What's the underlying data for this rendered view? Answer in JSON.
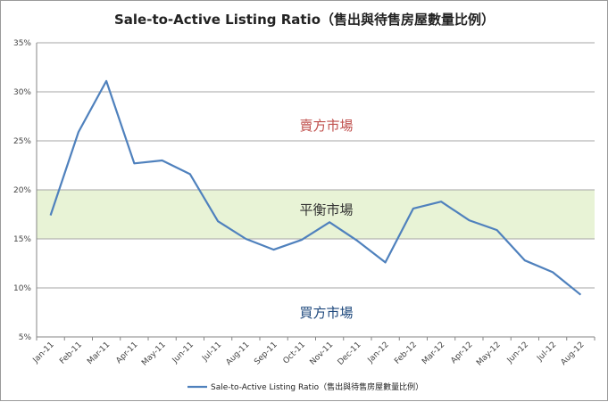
{
  "chart_data": {
    "type": "line",
    "title": "Sale-to-Active Listing Ratio（售出與待售房屋數量比例）",
    "categories": [
      "Jan-11",
      "Feb-11",
      "Mar-11",
      "Apr-11",
      "May-11",
      "Jun-11",
      "Jul-11",
      "Aug-11",
      "Sep-11",
      "Oct-11",
      "Nov-11",
      "Dec-11",
      "Jan-12",
      "Feb-12",
      "Mar-12",
      "Apr-12",
      "May-12",
      "Jun-12",
      "Jul-12",
      "Aug-12"
    ],
    "series": [
      {
        "name": "Sale-to-Active Listing Ratio（售出與待售房屋數量比例）",
        "values": [
          17.4,
          25.9,
          31.1,
          22.7,
          23.0,
          21.6,
          16.8,
          15.0,
          13.9,
          14.9,
          16.7,
          14.8,
          12.6,
          18.1,
          18.8,
          16.9,
          15.9,
          12.8,
          11.6,
          9.3
        ],
        "color": "#4f81bd"
      }
    ],
    "ylim": [
      5,
      35
    ],
    "yticks": [
      5,
      10,
      15,
      20,
      25,
      30,
      35
    ],
    "ytick_labels": [
      "5%",
      "10%",
      "15%",
      "20%",
      "25%",
      "30%",
      "35%"
    ],
    "ytick_suffix": "%",
    "grid": true,
    "legend_position": "bottom",
    "band": {
      "from": 15,
      "to": 20,
      "color": "#e8f3d6"
    },
    "annotations": [
      {
        "text": "賣方市場",
        "y": 26.1,
        "color": "#c0504d"
      },
      {
        "text": "平衡市場",
        "y": 17.5,
        "color": "#333333"
      },
      {
        "text": "買方市場",
        "y": 7.0,
        "color": "#1f497d"
      }
    ]
  }
}
